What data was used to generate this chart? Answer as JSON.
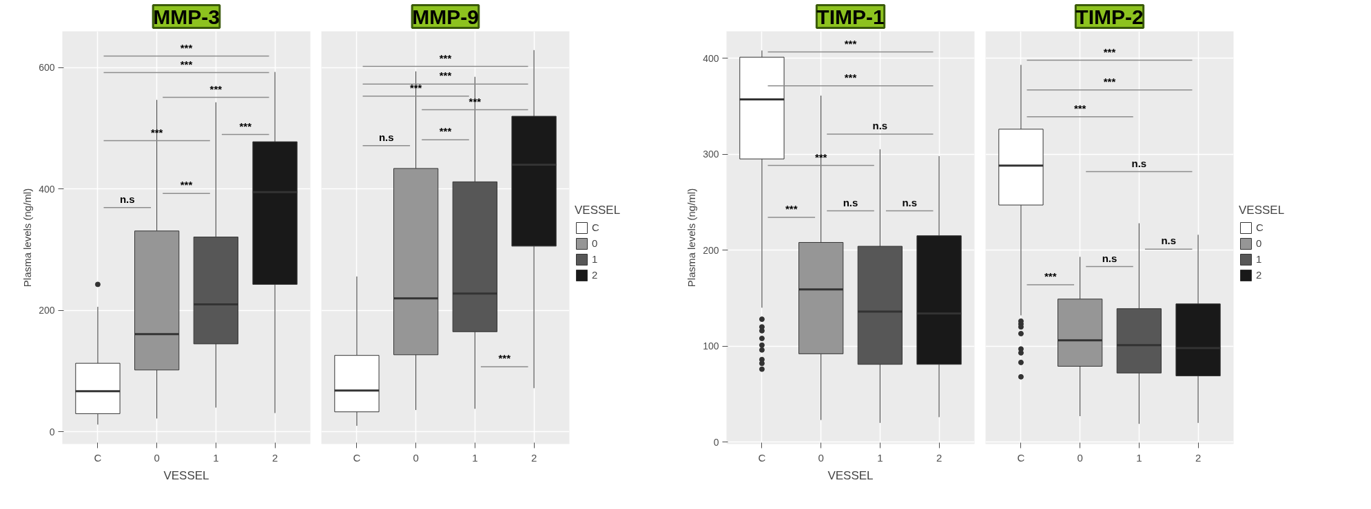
{
  "chart_data": [
    {
      "type": "box",
      "title": "MMP-3",
      "xlabel": "VESSEL",
      "ylabel": "Plasma levels (ng/ml)",
      "categories": [
        "C",
        "0",
        "1",
        "2"
      ],
      "series": [
        {
          "color": "#ffffff",
          "boxes": [
            {
              "low": 12,
              "q1": 30,
              "median": 67,
              "q3": 113,
              "high": 206,
              "outliers": [
                243
              ]
            },
            null,
            null,
            null
          ]
        },
        {
          "color": "#969696",
          "boxes": [
            null,
            {
              "low": 22,
              "q1": 102,
              "median": 161,
              "q3": 331,
              "high": 547
            },
            null,
            null
          ]
        },
        {
          "color": "#575757",
          "boxes": [
            null,
            null,
            {
              "low": 40,
              "q1": 145,
              "median": 210,
              "q3": 321,
              "high": 543
            },
            null
          ]
        },
        {
          "color": "#191919",
          "boxes": [
            null,
            null,
            null,
            {
              "low": 31,
              "q1": 243,
              "median": 395,
              "q3": 478,
              "high": 593
            }
          ]
        }
      ],
      "ylim": [
        -20,
        660
      ],
      "yticks": [
        0,
        200,
        400,
        600
      ],
      "grid": true,
      "tick_labels": true,
      "annotations": [
        "***",
        "***",
        "***",
        "***",
        "***",
        "***",
        "n.s"
      ]
    },
    {
      "type": "box",
      "title": "MMP-9",
      "categories": [
        "C",
        "0",
        "1",
        "2"
      ],
      "legend_title": "VESSEL",
      "legend": "right",
      "series": [
        {
          "name": "C",
          "color": "#ffffff",
          "boxes": [
            {
              "low": 10,
              "q1": 33,
              "median": 68,
              "q3": 126,
              "high": 256
            },
            null,
            null,
            null
          ]
        },
        {
          "name": "0",
          "color": "#969696",
          "boxes": [
            null,
            {
              "low": 36,
              "q1": 127,
              "median": 220,
              "q3": 434,
              "high": 594
            },
            null,
            null
          ]
        },
        {
          "name": "1",
          "color": "#575757",
          "boxes": [
            null,
            null,
            {
              "low": 38,
              "q1": 165,
              "median": 228,
              "q3": 412,
              "high": 585
            },
            null
          ]
        },
        {
          "name": "2",
          "color": "#191919",
          "boxes": [
            null,
            null,
            null,
            {
              "low": 72,
              "q1": 306,
              "median": 440,
              "q3": 520,
              "high": 629
            }
          ]
        }
      ],
      "ylim": [
        -20,
        660
      ],
      "yticks": [
        0,
        200,
        400,
        600
      ],
      "grid": true,
      "tick_labels": "x",
      "annotations": [
        "***",
        "***",
        "***",
        "***",
        "n.s",
        "***",
        "***"
      ]
    },
    {
      "type": "box",
      "title": "TIMP-1",
      "xlabel": "VESSEL",
      "ylabel": "Plasma levels (ng/ml)",
      "categories": [
        "C",
        "0",
        "1",
        "2"
      ],
      "series": [
        {
          "color": "#ffffff",
          "boxes": [
            {
              "low": 140,
              "q1": 295,
              "median": 357,
              "q3": 401,
              "high": 408,
              "outliers": [
                128,
                120,
                116,
                108,
                101,
                96,
                86,
                82,
                76
              ]
            },
            null,
            null,
            null
          ]
        },
        {
          "color": "#969696",
          "boxes": [
            null,
            {
              "low": 23,
              "q1": 92,
              "median": 159,
              "q3": 208,
              "high": 361
            },
            null,
            null
          ]
        },
        {
          "color": "#575757",
          "boxes": [
            null,
            null,
            {
              "low": 20,
              "q1": 81,
              "median": 136,
              "q3": 204,
              "high": 305
            },
            null
          ]
        },
        {
          "color": "#191919",
          "boxes": [
            null,
            null,
            null,
            {
              "low": 26,
              "q1": 81,
              "median": 134,
              "q3": 215,
              "high": 298
            }
          ]
        }
      ],
      "ylim": [
        -2,
        428
      ],
      "yticks": [
        0,
        100,
        200,
        300,
        400
      ],
      "grid": true,
      "tick_labels": true,
      "annotations": [
        "***",
        "***",
        "n.s",
        "***",
        "***",
        "n.s",
        "n.s"
      ]
    },
    {
      "type": "box",
      "title": "TIMP-2",
      "categories": [
        "C",
        "0",
        "1",
        "2"
      ],
      "legend_title": "VESSEL",
      "legend": "right",
      "series": [
        {
          "name": "C",
          "color": "#ffffff",
          "boxes": [
            {
              "low": 132,
              "q1": 247,
              "median": 288,
              "q3": 326,
              "high": 393,
              "outliers": [
                126,
                123,
                120,
                113,
                97,
                93,
                83,
                68
              ]
            },
            null,
            null,
            null
          ]
        },
        {
          "name": "0",
          "color": "#969696",
          "boxes": [
            null,
            {
              "low": 27,
              "q1": 79,
              "median": 106,
              "q3": 149,
              "high": 193
            },
            null,
            null
          ]
        },
        {
          "name": "1",
          "color": "#575757",
          "boxes": [
            null,
            null,
            {
              "low": 19,
              "q1": 72,
              "median": 101,
              "q3": 139,
              "high": 228
            },
            null
          ]
        },
        {
          "name": "2",
          "color": "#191919",
          "boxes": [
            null,
            null,
            null,
            {
              "low": 20,
              "q1": 69,
              "median": 98,
              "q3": 144,
              "high": 216
            }
          ]
        }
      ],
      "ylim": [
        -2,
        428
      ],
      "yticks": [
        0,
        100,
        200,
        300,
        400
      ],
      "grid": true,
      "tick_labels": "x",
      "annotations": [
        "***",
        "***",
        "***",
        "n.s",
        "***",
        "n.s",
        "n.s"
      ]
    }
  ]
}
